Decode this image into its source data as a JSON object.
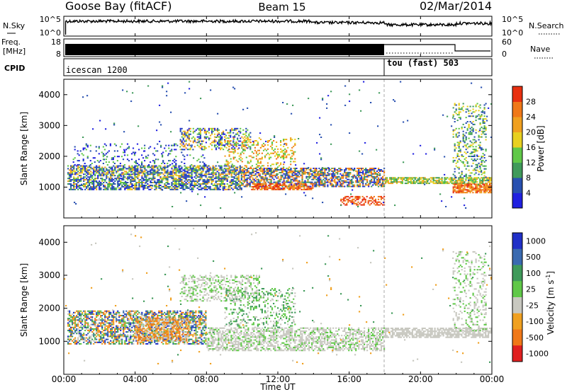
{
  "header": {
    "station": "Goose Bay (fitACF)",
    "beam": "Beam 15",
    "date": "02/Mar/2014"
  },
  "nsky_panel": {
    "left_label": "N.Sky",
    "right_label": "N.Search",
    "yticks_left": [
      "10^5",
      "10^0"
    ],
    "yticks_right": [
      "10^5",
      "10^0"
    ]
  },
  "freq_panel": {
    "left_label_1": "Freq.",
    "left_label_2": "[MHz]",
    "right_label": "Nave",
    "yticks_left": [
      "18",
      "8"
    ],
    "yticks_right": [
      "60",
      "0"
    ]
  },
  "cpid_panel": {
    "label": "CPID",
    "programs": [
      {
        "name": "icescan 1200",
        "start_hour": 0
      },
      {
        "name": "tou (fast) 503",
        "start_hour": 18
      }
    ]
  },
  "power_panel": {
    "ylabel": "Slant Range [km]",
    "yticks": [
      "1000",
      "2000",
      "3000",
      "4000"
    ],
    "colorbar_label": "Power [dB]",
    "colorbar_ticks": [
      "4",
      "8",
      "12",
      "16",
      "20",
      "24",
      "28"
    ],
    "colors": [
      "#2020e0",
      "#2850b0",
      "#3f9a5a",
      "#60c848",
      "#e8d020",
      "#f0a020",
      "#f07818",
      "#e83010"
    ]
  },
  "velocity_panel": {
    "ylabel": "Slant Range [km]",
    "yticks": [
      "1000",
      "2000",
      "3000",
      "4000"
    ],
    "colorbar_label": "Velocity [m s",
    "colorbar_label_sup": "-1",
    "colorbar_label_end": "]",
    "colorbar_ticks": [
      "1000",
      "500",
      "100",
      "25",
      "-25",
      "-100",
      "-500",
      "-1000"
    ],
    "colors": [
      "#2030c8",
      "#3a6ab0",
      "#3f9a5a",
      "#60c848",
      "#c8c8c0",
      "#f0a020",
      "#f07818",
      "#e02020"
    ]
  },
  "time_axis": {
    "ticks": [
      "00:00",
      "04:00",
      "08:00",
      "12:00",
      "16:00",
      "20:00",
      "00:00"
    ],
    "label": "Time UT"
  },
  "chart_data": {
    "type": "heatmap",
    "title": "Goose Bay (fitACF)",
    "x_range_hours": [
      0,
      24
    ],
    "y_range_km": [
      0,
      4500
    ],
    "mode_change_hour": 18,
    "power_features": [
      {
        "t0": 0.2,
        "t1": 10,
        "r0": 900,
        "r1": 1700,
        "level": "mixed"
      },
      {
        "t0": 7,
        "t1": 10.5,
        "r0": 2200,
        "r1": 2900,
        "level": "weak-moderate"
      },
      {
        "t0": 10,
        "t1": 18,
        "r0": 1000,
        "r1": 1600,
        "level": "strong"
      },
      {
        "t0": 15.5,
        "t1": 18,
        "r0": 400,
        "r1": 700,
        "level": "strong"
      },
      {
        "t0": 18,
        "t1": 24,
        "r0": 1100,
        "r1": 1300,
        "level": "moderate"
      },
      {
        "t0": 21.8,
        "t1": 24,
        "r0": 800,
        "r1": 1100,
        "level": "strong"
      },
      {
        "t0": 21.8,
        "t1": 23.7,
        "r0": 1300,
        "r1": 3700,
        "level": "moderate"
      }
    ],
    "velocity_features": [
      {
        "t0": 0.2,
        "t1": 8,
        "r0": 900,
        "r1": 1900,
        "sign": "mixed"
      },
      {
        "t0": 8,
        "t1": 24,
        "r0": 700,
        "r1": 3000,
        "sign": "near-zero"
      }
    ]
  }
}
